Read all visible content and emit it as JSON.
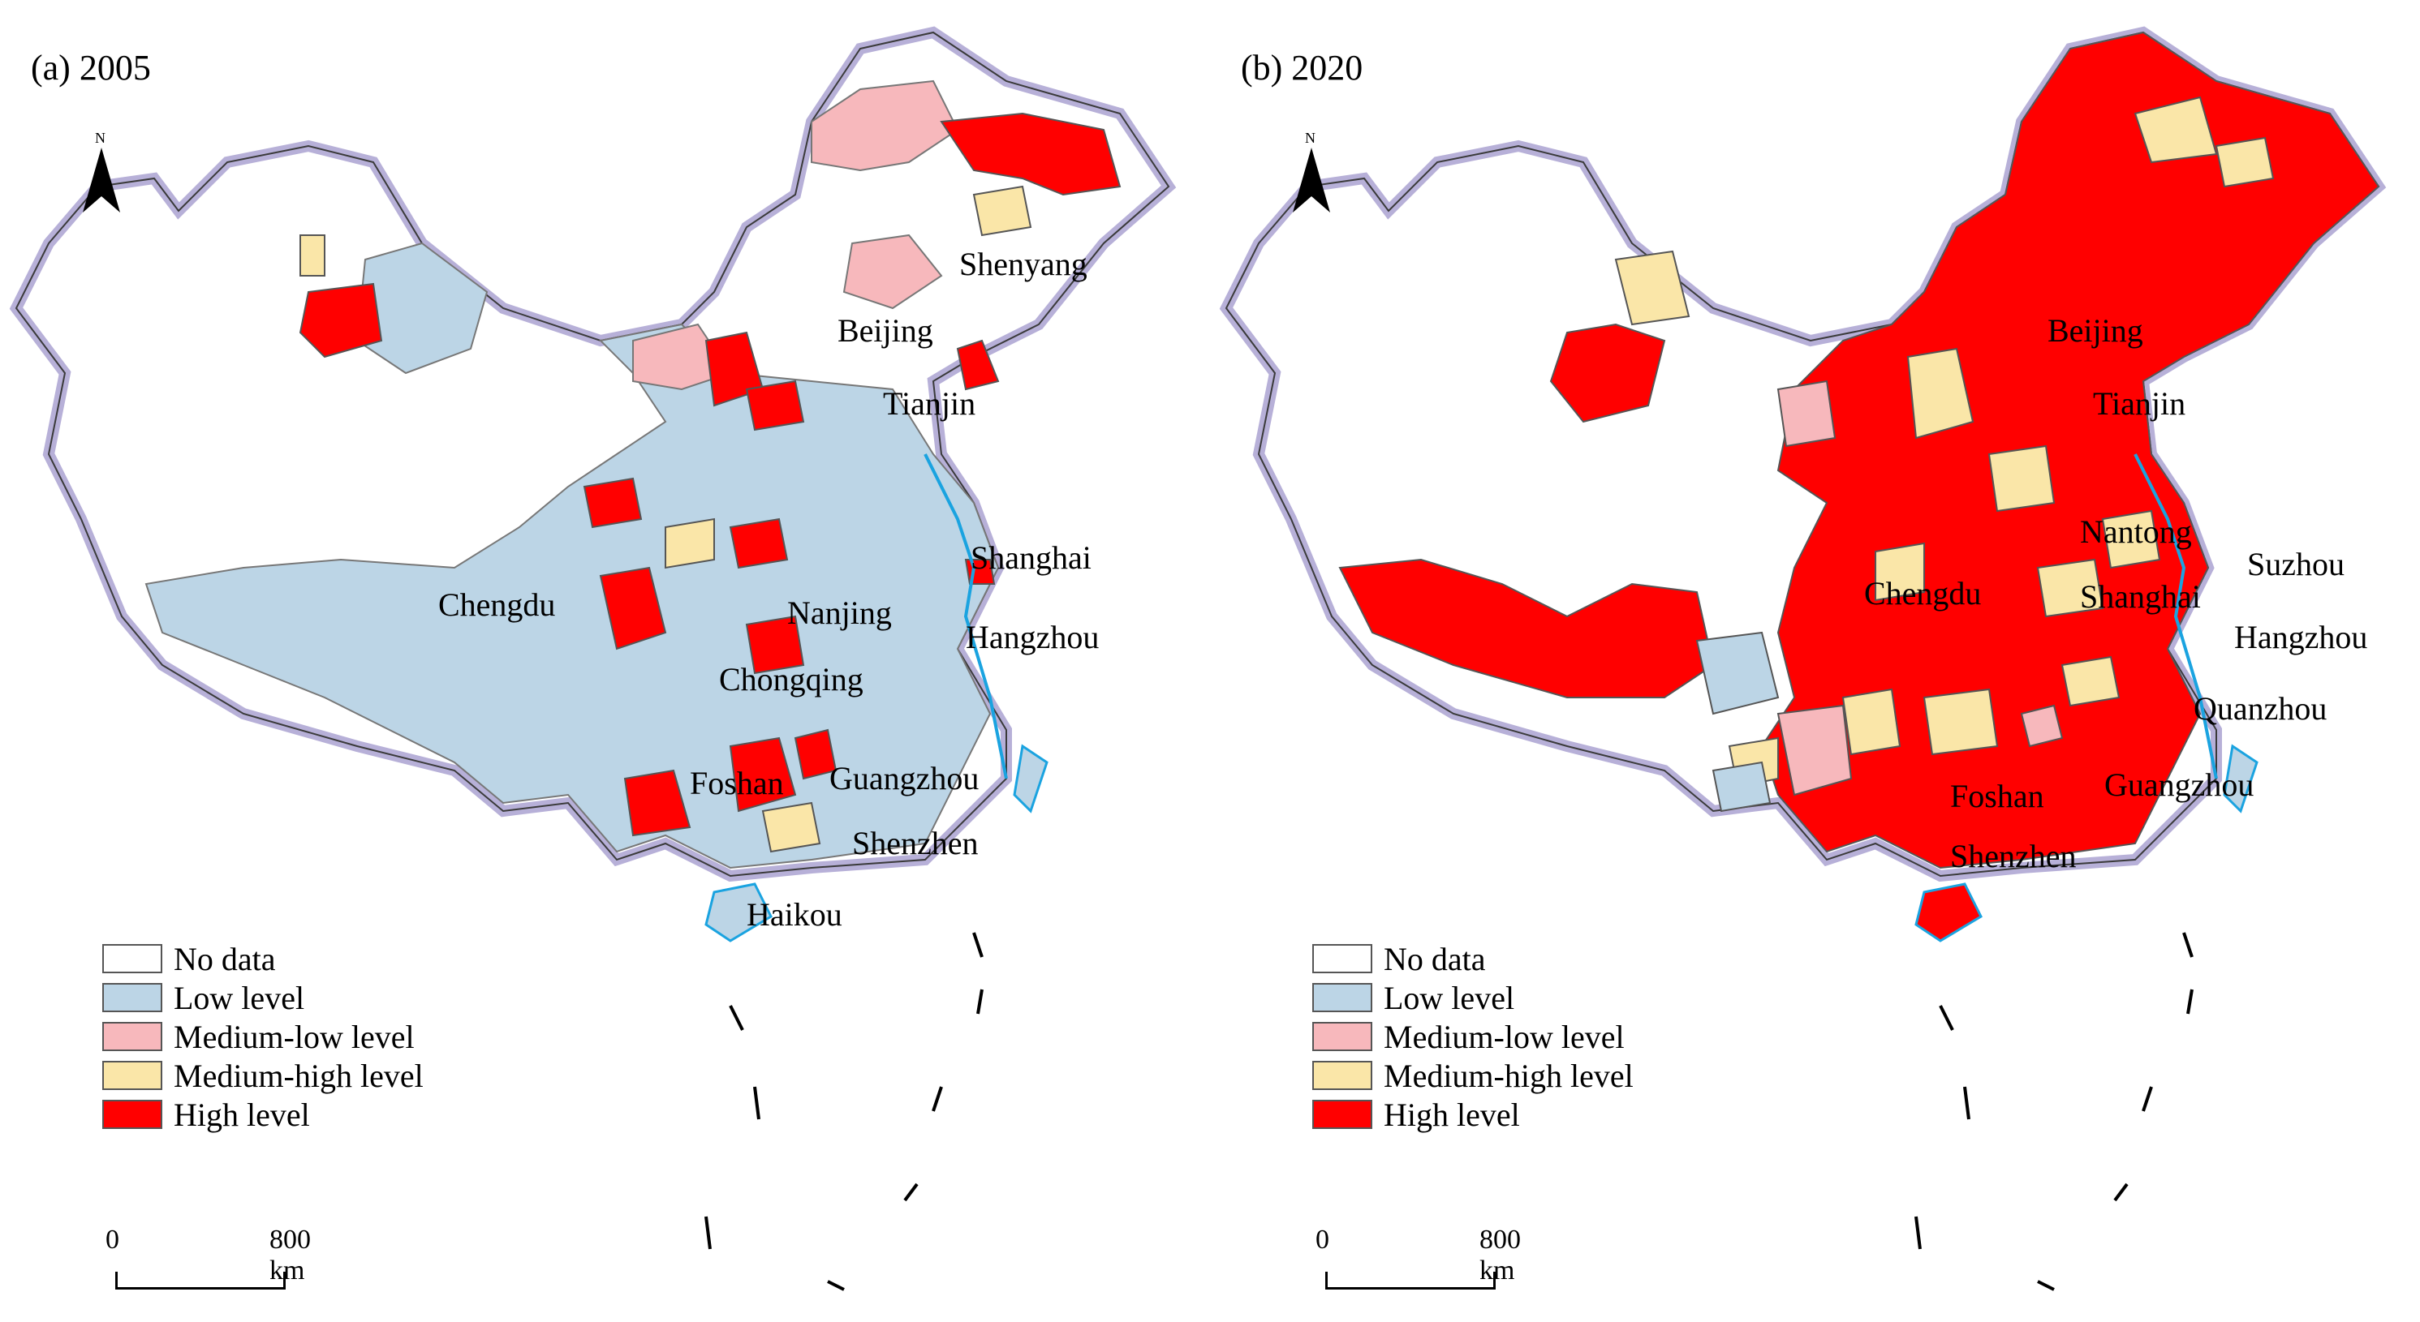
{
  "legend": [
    {
      "label": "No data",
      "color": "#ffffff"
    },
    {
      "label": "Low level",
      "color": "#bcd5e6"
    },
    {
      "label": "Medium-low level",
      "color": "#f7b8bc"
    },
    {
      "label": "Medium-high level",
      "color": "#fae6a8"
    },
    {
      "label": "High level",
      "color": "#ff0000"
    }
  ],
  "scale_bar": {
    "start": "0",
    "end": "800 km"
  },
  "north_arrow": "N",
  "panels": [
    {
      "title": "(a) 2005",
      "dominant_class": "Low level",
      "cities": [
        "Shenyang",
        "Beijing",
        "Tianjin",
        "Shanghai",
        "Chengdu",
        "Nanjing",
        "Hangzhou",
        "Chongqing",
        "Foshan",
        "Guangzhou",
        "Shenzhen",
        "Haikou"
      ]
    },
    {
      "title": "(b) 2020",
      "dominant_class": "High level",
      "cities": [
        "Beijing",
        "Tianjin",
        "Nantong",
        "Suzhou",
        "Chengdu",
        "Shanghai",
        "Hangzhou",
        "Quanzhou",
        "Foshan",
        "Guangzhou",
        "Shenzhen"
      ]
    }
  ]
}
